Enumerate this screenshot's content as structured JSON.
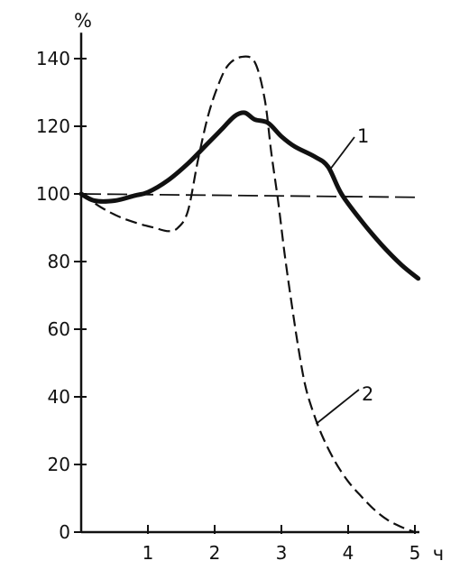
{
  "chart_data": {
    "type": "line",
    "title": "",
    "ylabel": "%",
    "xlabel_unit": "ч",
    "xlim": [
      0,
      5
    ],
    "ylim": [
      0,
      145
    ],
    "grid": false,
    "x_ticks": [
      1,
      2,
      3,
      4,
      5
    ],
    "x_tick_labels": [
      "1",
      "2",
      "3",
      "4",
      "5"
    ],
    "y_ticks": [
      0,
      20,
      40,
      60,
      80,
      100,
      120,
      140
    ],
    "y_tick_labels": [
      "0",
      "20",
      "40",
      "60",
      "80",
      "100",
      "120",
      "140"
    ],
    "reference_line": {
      "y_start": 100,
      "y_end": 99,
      "style": "long-dash"
    },
    "series": [
      {
        "name": "1",
        "style": "solid-thick",
        "color": "#111111",
        "points": [
          [
            0,
            100
          ],
          [
            0.2,
            98
          ],
          [
            0.5,
            98
          ],
          [
            0.8,
            99.5
          ],
          [
            1.0,
            100.5
          ],
          [
            1.3,
            104
          ],
          [
            1.6,
            109
          ],
          [
            1.9,
            115
          ],
          [
            2.1,
            119
          ],
          [
            2.3,
            123
          ],
          [
            2.45,
            124
          ],
          [
            2.6,
            122
          ],
          [
            2.8,
            121
          ],
          [
            3.0,
            117
          ],
          [
            3.2,
            114
          ],
          [
            3.5,
            111
          ],
          [
            3.7,
            108
          ],
          [
            3.9,
            100
          ],
          [
            4.2,
            92
          ],
          [
            4.5,
            85
          ],
          [
            4.8,
            79
          ],
          [
            5.05,
            75
          ]
        ]
      },
      {
        "name": "2",
        "style": "dashed",
        "color": "#111111",
        "points": [
          [
            0,
            100
          ],
          [
            0.3,
            96
          ],
          [
            0.6,
            93
          ],
          [
            0.9,
            91
          ],
          [
            1.1,
            90
          ],
          [
            1.3,
            89
          ],
          [
            1.45,
            90
          ],
          [
            1.6,
            95
          ],
          [
            1.75,
            110
          ],
          [
            1.9,
            123
          ],
          [
            2.05,
            132
          ],
          [
            2.2,
            138
          ],
          [
            2.4,
            140.5
          ],
          [
            2.6,
            139
          ],
          [
            2.75,
            128
          ],
          [
            2.85,
            112
          ],
          [
            2.95,
            98
          ],
          [
            3.05,
            82
          ],
          [
            3.15,
            68
          ],
          [
            3.25,
            55
          ],
          [
            3.35,
            44
          ],
          [
            3.45,
            37
          ],
          [
            3.6,
            29
          ],
          [
            3.8,
            21
          ],
          [
            4.0,
            15
          ],
          [
            4.2,
            10.5
          ],
          [
            4.4,
            6.5
          ],
          [
            4.6,
            3.5
          ],
          [
            4.8,
            1.5
          ],
          [
            5.0,
            0
          ]
        ]
      }
    ]
  }
}
